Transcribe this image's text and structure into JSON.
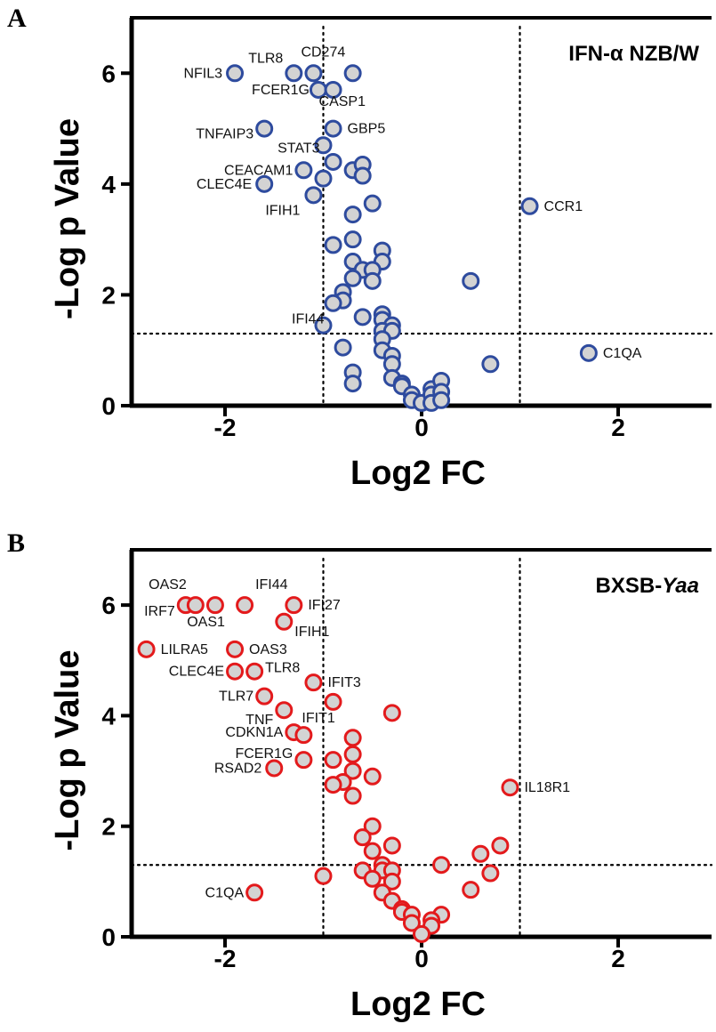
{
  "panels": [
    "A",
    "B"
  ],
  "chart_data": [
    {
      "type": "scatter",
      "panel": "A",
      "title": "IFN-α NZB/W",
      "title_parts": [],
      "xlabel": "Log2 FC",
      "ylabel": "-Log p Value",
      "xlim": [
        -2.95,
        2.95
      ],
      "ylim": [
        0,
        7
      ],
      "xticks": [
        -2,
        0,
        2
      ],
      "yticks": [
        0,
        2,
        4,
        6
      ],
      "grid": false,
      "thresholds": {
        "x": [
          -1,
          1
        ],
        "y": 1.3
      },
      "marker": {
        "stroke": "#2E4B9E",
        "fill": "#D3D3D3"
      },
      "points": [
        {
          "x": -1.9,
          "y": 6.0,
          "label": "NFIL3"
        },
        {
          "x": -1.3,
          "y": 6.0,
          "label": "TLR8"
        },
        {
          "x": -1.1,
          "y": 6.0,
          "label": "CD274"
        },
        {
          "x": -0.7,
          "y": 6.0,
          "label": ""
        },
        {
          "x": -1.05,
          "y": 5.7,
          "label": "FCER1G"
        },
        {
          "x": -0.9,
          "y": 5.7,
          "label": "CASP1"
        },
        {
          "x": -1.6,
          "y": 5.0,
          "label": "TNFAIP3"
        },
        {
          "x": -0.9,
          "y": 5.0,
          "label": "GBP5"
        },
        {
          "x": -1.0,
          "y": 4.7,
          "label": "STAT3"
        },
        {
          "x": -0.9,
          "y": 4.4,
          "label": ""
        },
        {
          "x": -1.2,
          "y": 4.25,
          "label": "CEACAM1"
        },
        {
          "x": -0.7,
          "y": 4.25,
          "label": ""
        },
        {
          "x": -0.6,
          "y": 4.35,
          "label": ""
        },
        {
          "x": -0.6,
          "y": 4.15,
          "label": ""
        },
        {
          "x": -1.0,
          "y": 4.1,
          "label": ""
        },
        {
          "x": -1.6,
          "y": 4.0,
          "label": "CLEC4E"
        },
        {
          "x": -1.1,
          "y": 3.8,
          "label": "IFIH1"
        },
        {
          "x": -0.5,
          "y": 3.65,
          "label": ""
        },
        {
          "x": -0.7,
          "y": 3.45,
          "label": ""
        },
        {
          "x": -0.7,
          "y": 3.0,
          "label": ""
        },
        {
          "x": -0.9,
          "y": 2.9,
          "label": ""
        },
        {
          "x": -0.4,
          "y": 2.8,
          "label": ""
        },
        {
          "x": -0.7,
          "y": 2.6,
          "label": ""
        },
        {
          "x": -0.4,
          "y": 2.6,
          "label": ""
        },
        {
          "x": -0.6,
          "y": 2.45,
          "label": ""
        },
        {
          "x": -0.5,
          "y": 2.45,
          "label": ""
        },
        {
          "x": -0.7,
          "y": 2.3,
          "label": ""
        },
        {
          "x": -0.5,
          "y": 2.25,
          "label": ""
        },
        {
          "x": -0.8,
          "y": 2.05,
          "label": ""
        },
        {
          "x": -0.8,
          "y": 1.9,
          "label": ""
        },
        {
          "x": -0.9,
          "y": 1.85,
          "label": ""
        },
        {
          "x": -0.6,
          "y": 1.6,
          "label": ""
        },
        {
          "x": -0.4,
          "y": 1.65,
          "label": ""
        },
        {
          "x": -0.4,
          "y": 1.55,
          "label": ""
        },
        {
          "x": -0.3,
          "y": 1.45,
          "label": ""
        },
        {
          "x": -0.4,
          "y": 1.35,
          "label": ""
        },
        {
          "x": -0.3,
          "y": 1.35,
          "label": ""
        },
        {
          "x": -1.0,
          "y": 1.45,
          "label": "IFI44"
        },
        {
          "x": -0.4,
          "y": 1.2,
          "label": ""
        },
        {
          "x": -0.4,
          "y": 1.0,
          "label": ""
        },
        {
          "x": -0.3,
          "y": 0.9,
          "label": ""
        },
        {
          "x": -0.3,
          "y": 0.75,
          "label": ""
        },
        {
          "x": -0.8,
          "y": 1.05,
          "label": ""
        },
        {
          "x": -0.7,
          "y": 0.6,
          "label": ""
        },
        {
          "x": -0.7,
          "y": 0.4,
          "label": ""
        },
        {
          "x": -0.3,
          "y": 0.5,
          "label": ""
        },
        {
          "x": -0.2,
          "y": 0.4,
          "label": ""
        },
        {
          "x": -0.2,
          "y": 0.35,
          "label": ""
        },
        {
          "x": -0.1,
          "y": 0.2,
          "label": ""
        },
        {
          "x": -0.1,
          "y": 0.1,
          "label": ""
        },
        {
          "x": 0.0,
          "y": 0.05,
          "label": ""
        },
        {
          "x": 0.1,
          "y": 0.3,
          "label": ""
        },
        {
          "x": 0.1,
          "y": 0.2,
          "label": ""
        },
        {
          "x": 0.1,
          "y": 0.05,
          "label": ""
        },
        {
          "x": 0.2,
          "y": 0.45,
          "label": ""
        },
        {
          "x": 0.2,
          "y": 0.25,
          "label": ""
        },
        {
          "x": 0.2,
          "y": 0.1,
          "label": ""
        },
        {
          "x": 0.5,
          "y": 2.25,
          "label": ""
        },
        {
          "x": 0.7,
          "y": 0.75,
          "label": ""
        },
        {
          "x": 1.1,
          "y": 3.6,
          "label": "CCR1"
        },
        {
          "x": 1.7,
          "y": 0.95,
          "label": "C1QA"
        }
      ]
    },
    {
      "type": "scatter",
      "panel": "B",
      "title": "",
      "title_parts": [
        {
          "text": "BXSB-",
          "italic": false
        },
        {
          "text": "Yaa",
          "italic": true
        }
      ],
      "xlabel": "Log2 FC",
      "ylabel": "-Log p Value",
      "xlim": [
        -2.95,
        2.95
      ],
      "ylim": [
        0,
        7
      ],
      "xticks": [
        -2,
        0,
        2
      ],
      "yticks": [
        0,
        2,
        4,
        6
      ],
      "grid": false,
      "thresholds": {
        "x": [
          -1,
          1
        ],
        "y": 1.3
      },
      "marker": {
        "stroke": "#E31A1C",
        "fill": "#D3D3D3"
      },
      "points": [
        {
          "x": -2.4,
          "y": 6.0,
          "label": "IRF7"
        },
        {
          "x": -2.3,
          "y": 6.0,
          "label": "OAS2"
        },
        {
          "x": -2.1,
          "y": 6.0,
          "label": "OAS1"
        },
        {
          "x": -1.8,
          "y": 6.0,
          "label": "IFI44"
        },
        {
          "x": -1.3,
          "y": 6.0,
          "label": "IFI27"
        },
        {
          "x": -1.4,
          "y": 5.7,
          "label": "IFIH1"
        },
        {
          "x": -2.8,
          "y": 5.2,
          "label": "LILRA5"
        },
        {
          "x": -1.9,
          "y": 5.2,
          "label": "OAS3"
        },
        {
          "x": -1.9,
          "y": 4.8,
          "label": "CLEC4E"
        },
        {
          "x": -1.7,
          "y": 4.8,
          "label": "TLR8"
        },
        {
          "x": -1.1,
          "y": 4.6,
          "label": "IFIT3"
        },
        {
          "x": -1.6,
          "y": 4.35,
          "label": "TLR7"
        },
        {
          "x": -0.9,
          "y": 4.25,
          "label": ""
        },
        {
          "x": -1.4,
          "y": 4.1,
          "label": "TNF"
        },
        {
          "x": -0.3,
          "y": 4.05,
          "label": ""
        },
        {
          "x": -1.3,
          "y": 3.7,
          "label": "CDKN1A"
        },
        {
          "x": -1.2,
          "y": 3.65,
          "label": "IFIT1"
        },
        {
          "x": -0.7,
          "y": 3.6,
          "label": ""
        },
        {
          "x": -0.7,
          "y": 3.3,
          "label": ""
        },
        {
          "x": -1.2,
          "y": 3.2,
          "label": "FCER1G"
        },
        {
          "x": -0.9,
          "y": 3.2,
          "label": ""
        },
        {
          "x": -1.5,
          "y": 3.05,
          "label": "RSAD2"
        },
        {
          "x": -0.7,
          "y": 3.0,
          "label": ""
        },
        {
          "x": -0.5,
          "y": 2.9,
          "label": ""
        },
        {
          "x": -0.8,
          "y": 2.8,
          "label": ""
        },
        {
          "x": -0.9,
          "y": 2.75,
          "label": ""
        },
        {
          "x": -0.7,
          "y": 2.55,
          "label": ""
        },
        {
          "x": 0.9,
          "y": 2.7,
          "label": "IL18R1"
        },
        {
          "x": -0.5,
          "y": 2.0,
          "label": ""
        },
        {
          "x": -0.6,
          "y": 1.8,
          "label": ""
        },
        {
          "x": -0.3,
          "y": 1.65,
          "label": ""
        },
        {
          "x": -0.5,
          "y": 1.55,
          "label": ""
        },
        {
          "x": 0.8,
          "y": 1.65,
          "label": ""
        },
        {
          "x": 0.6,
          "y": 1.5,
          "label": ""
        },
        {
          "x": -0.4,
          "y": 1.3,
          "label": ""
        },
        {
          "x": 0.2,
          "y": 1.3,
          "label": ""
        },
        {
          "x": -0.6,
          "y": 1.2,
          "label": ""
        },
        {
          "x": -0.4,
          "y": 1.2,
          "label": ""
        },
        {
          "x": -0.3,
          "y": 1.2,
          "label": ""
        },
        {
          "x": 0.7,
          "y": 1.15,
          "label": ""
        },
        {
          "x": -1.0,
          "y": 1.1,
          "label": ""
        },
        {
          "x": -0.5,
          "y": 1.05,
          "label": ""
        },
        {
          "x": -0.3,
          "y": 1.0,
          "label": ""
        },
        {
          "x": -0.4,
          "y": 0.8,
          "label": ""
        },
        {
          "x": 0.5,
          "y": 0.85,
          "label": ""
        },
        {
          "x": -1.7,
          "y": 0.8,
          "label": "C1QA"
        },
        {
          "x": -0.3,
          "y": 0.65,
          "label": ""
        },
        {
          "x": -0.2,
          "y": 0.5,
          "label": ""
        },
        {
          "x": -0.2,
          "y": 0.45,
          "label": ""
        },
        {
          "x": -0.1,
          "y": 0.4,
          "label": ""
        },
        {
          "x": 0.2,
          "y": 0.4,
          "label": ""
        },
        {
          "x": 0.1,
          "y": 0.3,
          "label": ""
        },
        {
          "x": -0.1,
          "y": 0.25,
          "label": ""
        },
        {
          "x": 0.1,
          "y": 0.2,
          "label": ""
        },
        {
          "x": 0.0,
          "y": 0.05,
          "label": ""
        }
      ]
    }
  ]
}
